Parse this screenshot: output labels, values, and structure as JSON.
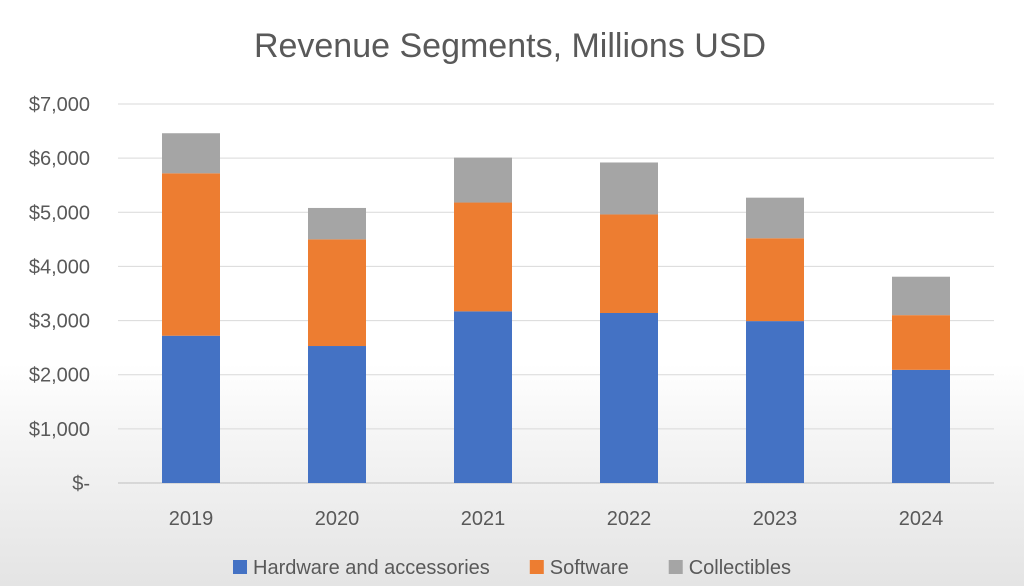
{
  "chart_data": {
    "type": "bar",
    "stacked": true,
    "title": "Revenue Segments, Millions USD",
    "xlabel": "",
    "ylabel": "",
    "categories": [
      "2019",
      "2020",
      "2021",
      "2022",
      "2023",
      "2024"
    ],
    "ylim": [
      0,
      7000
    ],
    "yticks": [
      0,
      1000,
      2000,
      3000,
      4000,
      5000,
      6000,
      7000
    ],
    "ytick_labels": [
      "$-",
      "$1,000",
      "$2,000",
      "$3,000",
      "$4,000",
      "$5,000",
      "$6,000",
      "$7,000"
    ],
    "grid": true,
    "legend_position": "bottom",
    "series": [
      {
        "name": "Hardware and accessories",
        "color": "#4472C4",
        "values": [
          2720,
          2530,
          3170,
          3140,
          2990,
          2090
        ]
      },
      {
        "name": "Software",
        "color": "#ED7D31",
        "values": [
          3000,
          1970,
          2010,
          1820,
          1530,
          1010
        ]
      },
      {
        "name": "Collectibles",
        "color": "#A5A5A5",
        "values": [
          740,
          580,
          830,
          960,
          750,
          710
        ]
      }
    ]
  }
}
